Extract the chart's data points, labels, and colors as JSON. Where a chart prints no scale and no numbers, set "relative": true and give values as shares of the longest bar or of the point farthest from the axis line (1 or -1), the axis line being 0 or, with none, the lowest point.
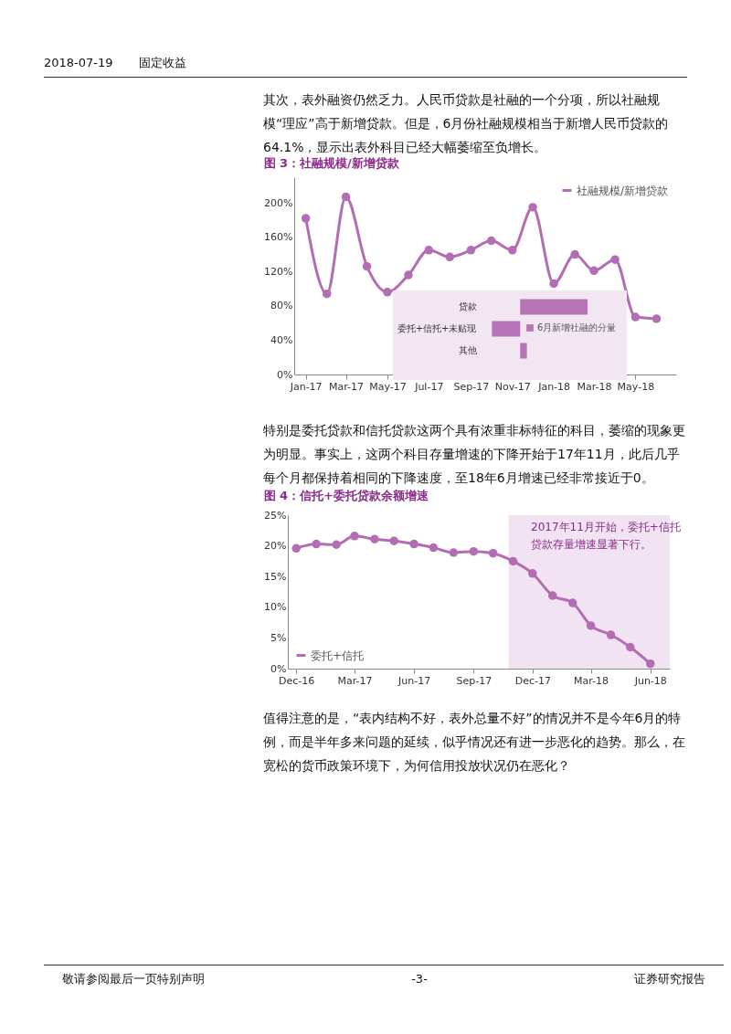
{
  "chart_data": [
    {
      "type": "other",
      "annotations": [
        "2018-07-19",
        "固定收益"
      ]
    },
    {
      "type": "other",
      "annotations": [
        "其次，表外融资仍然乏力。人民币贷款是社融的一个分项，所以社融规模“理应”高于新增贷款。但是，6月份社融规模相当于新增人民币贷款的64.1%，显示出表外科目已经大幅萎缩至负增长。"
      ]
    },
    {
      "type": "line",
      "title": "图 3：社融规模/新增贷款",
      "x": [
        "2017-01",
        "2017-02",
        "2017-03",
        "2017-04",
        "2017-05",
        "2017-06",
        "2017-07",
        "2017-08",
        "2017-09",
        "2017-10",
        "2017-11",
        "2017-12",
        "2018-01",
        "2018-02",
        "2018-03",
        "2018-04",
        "2018-05",
        "2018-06"
      ],
      "xlim": [
        "2016-12-15",
        "2018-06-30"
      ],
      "xticks": [
        {
          "value": "2017-01",
          "label": "Jan-17"
        },
        {
          "value": "2017-03",
          "label": "Mar-17"
        },
        {
          "value": "2017-05",
          "label": "May-17"
        },
        {
          "value": "2017-07",
          "label": "Jul-17"
        },
        {
          "value": "2017-09",
          "label": "Sep-17"
        },
        {
          "value": "2017-11",
          "label": "Nov-17"
        },
        {
          "value": "2018-01",
          "label": "Jan-18"
        },
        {
          "value": "2018-03",
          "label": "Mar-18"
        },
        {
          "value": "2018-05",
          "label": "May-18"
        }
      ],
      "ylim": [
        0,
        230
      ],
      "yticks": [
        {
          "value": 0,
          "label": "0%"
        },
        {
          "value": 40,
          "label": "40%"
        },
        {
          "value": 80,
          "label": "80%"
        },
        {
          "value": 120,
          "label": "120%"
        },
        {
          "value": 160,
          "label": "160%"
        },
        {
          "value": 200,
          "label": "200%"
        }
      ],
      "legend": "top right",
      "marker": "circle",
      "series": [
        {
          "name": "社融规模/新增贷款",
          "color": "#b36db3",
          "values": [
            182,
            94,
            207,
            126,
            96,
            116,
            145,
            137,
            145,
            156,
            145,
            195,
            106,
            140,
            121,
            134,
            67,
            65
          ]
        }
      ]
    },
    {
      "type": "bar",
      "orientation": "horizontal",
      "relative": true,
      "categories": [
        "贷款",
        "委托+信托+未贴现",
        "其他"
      ],
      "legend": "right",
      "series": [
        {
          "name": "6月新增社融的分量",
          "color": "#b673b6",
          "values": [
            1,
            -0.42,
            0.1
          ]
        }
      ]
    },
    {
      "type": "other",
      "annotations": [
        "特别是委托贷款和信托贷款这两个具有浓重非标特征的科目，萎缩的现象更为明显。事实上，这两个科目存量增速的下降开始于17年11月，此后几乎每个月都保持着相同的下降速度，至18年6月增速已经非常接近于0。"
      ]
    },
    {
      "type": "line",
      "title": "图 4：信托+委托贷款余额增速",
      "x": [
        "2016-12",
        "2017-01",
        "2017-02",
        "2017-03",
        "2017-04",
        "2017-05",
        "2017-06",
        "2017-07",
        "2017-08",
        "2017-09",
        "2017-10",
        "2017-11",
        "2017-12",
        "2018-01",
        "2018-02",
        "2018-03",
        "2018-04",
        "2018-05",
        "2018-06"
      ],
      "xlim": [
        "2016-11-18",
        "2018-07-01"
      ],
      "xticks": [
        {
          "value": "2016-12",
          "label": "Dec-16"
        },
        {
          "value": "2017-03",
          "label": "Mar-17"
        },
        {
          "value": "2017-06",
          "label": "Jun-17"
        },
        {
          "value": "2017-09",
          "label": "Sep-17"
        },
        {
          "value": "2017-12",
          "label": "Dec-17"
        },
        {
          "value": "2018-03",
          "label": "Mar-18"
        },
        {
          "value": "2018-06",
          "label": "Jun-18"
        }
      ],
      "ylim": [
        0,
        25
      ],
      "yticks": [
        {
          "value": 0,
          "label": "0%"
        },
        {
          "value": 5,
          "label": "5%"
        },
        {
          "value": 10,
          "label": "10%"
        },
        {
          "value": 15,
          "label": "15%"
        },
        {
          "value": 20,
          "label": "20%"
        },
        {
          "value": 25,
          "label": "25%"
        }
      ],
      "legend": "bottom left",
      "marker": "circle",
      "bands": [
        {
          "axis": "x",
          "from": "2017-10-25",
          "to": "2018-07-01",
          "label": "2017年11月开始，委托+信托贷款存量增速显著下行。",
          "color": "#f1e3f1"
        }
      ],
      "series": [
        {
          "name": "委托+信托",
          "color": "#b36db3",
          "values": [
            19.6,
            20.3,
            20.2,
            21.6,
            21.1,
            20.8,
            20.3,
            19.7,
            18.9,
            19.1,
            18.8,
            17.5,
            15.5,
            11.9,
            10.7,
            7.0,
            5.5,
            3.5,
            0.8
          ]
        }
      ]
    },
    {
      "type": "other",
      "annotations": [
        "值得注意的是，“表内结构不好，表外总量不好”的情况并不是今年6月的特例，而是半年多来问题的延续，似乎情况还有进一步恶化的趋势。那么，在宽松的货币政策环境下，为何信用投放状况仍在恶化？"
      ]
    },
    {
      "type": "other",
      "annotations": [
        "敬请参阅最后一页特别声明",
        "-3-",
        "证券研究报告"
      ]
    }
  ]
}
